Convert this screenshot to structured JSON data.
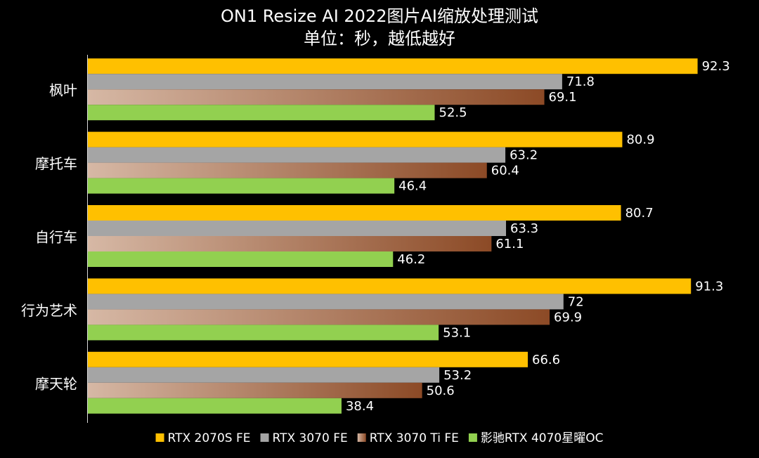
{
  "chart_data": {
    "type": "hbar",
    "title": "ON1 Resize AI 2022图片AI缩放处理测试",
    "subtitle": "单位：秒，越低越好",
    "categories": [
      "枫叶",
      "摩托车",
      "自行车",
      "行为艺术",
      "摩天轮"
    ],
    "series": [
      {
        "name": "RTX 2070S FE",
        "color": "#ffc000",
        "values": [
          92.3,
          80.9,
          80.7,
          91.3,
          66.6
        ]
      },
      {
        "name": "RTX 3070 FE",
        "color": "#a5a5a5",
        "values": [
          71.8,
          63.2,
          63.3,
          72,
          53.2
        ]
      },
      {
        "name": "RTX 3070 Ti FE",
        "color": "#d6b8a5",
        "gradient_end": "#8c4a26",
        "values": [
          69.1,
          60.4,
          61.1,
          69.9,
          50.6
        ]
      },
      {
        "name": "影驰RTX 4070星曜OC",
        "color": "#92d050",
        "values": [
          52.5,
          46.4,
          46.2,
          53.1,
          38.4
        ]
      }
    ],
    "xlim": [
      0,
      100
    ],
    "legend": "bottom"
  }
}
